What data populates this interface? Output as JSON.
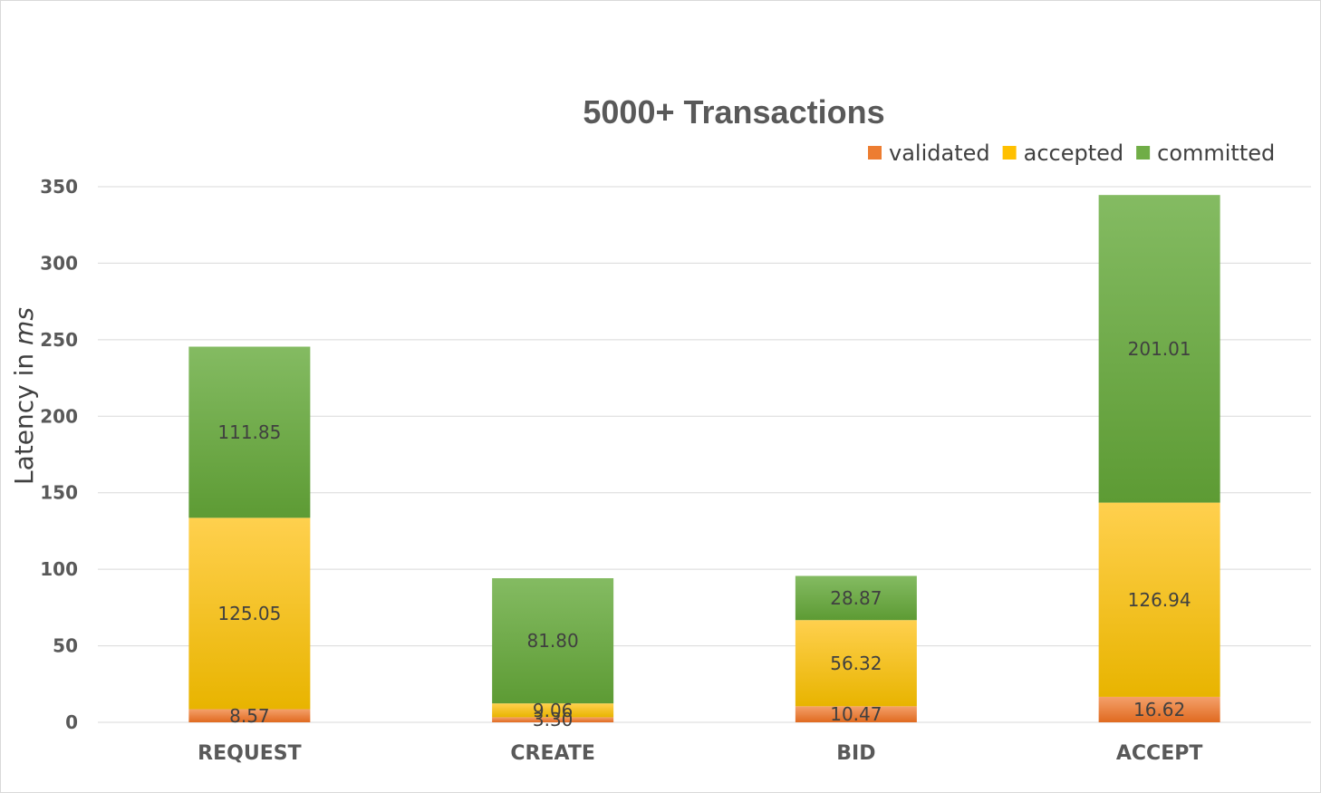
{
  "chart_data": {
    "type": "bar",
    "stacked": true,
    "title": "5000+ Transactions",
    "ylabel": "Latency in",
    "ylabel_unit": "ms",
    "xlabel": "",
    "ylim": [
      0,
      350
    ],
    "yticks": [
      "0",
      "50",
      "100",
      "150",
      "200",
      "250",
      "300",
      "350"
    ],
    "grid": true,
    "legend_position": "top-right",
    "categories": [
      "REQUEST",
      "CREATE",
      "BID",
      "ACCEPT"
    ],
    "series": [
      {
        "name": "validated",
        "color": "#ED7D31",
        "values": [
          8.57,
          3.3,
          10.47,
          16.62
        ],
        "labels": [
          "8.57",
          "3.30",
          "10.47",
          "16.62"
        ]
      },
      {
        "name": "accepted",
        "color": "#FFC000",
        "values": [
          125.05,
          9.06,
          56.32,
          126.94
        ],
        "labels": [
          "125.05",
          "9.06",
          "56.32",
          "126.94"
        ]
      },
      {
        "name": "committed",
        "color": "#70AD47",
        "values": [
          111.85,
          81.8,
          28.87,
          201.01
        ],
        "labels": [
          "111.85",
          "81.80",
          "28.87",
          "201.01"
        ]
      }
    ]
  }
}
